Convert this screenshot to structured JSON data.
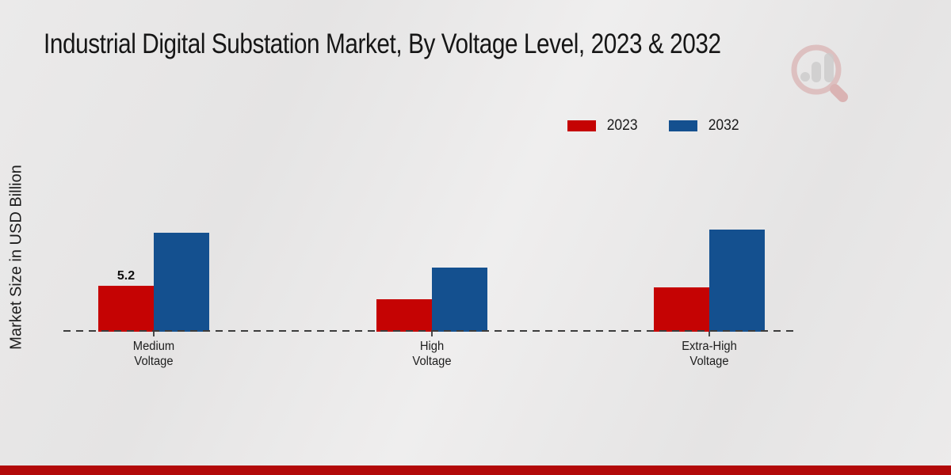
{
  "chart_data": {
    "type": "bar",
    "title": "Industrial Digital Substation Market, By Voltage Level, 2023 & 2032",
    "xlabel": "",
    "ylabel": "Market Size in USD Billion",
    "categories": [
      "Medium Voltage",
      "High Voltage",
      "Extra-High Voltage"
    ],
    "series": [
      {
        "name": "2023",
        "color": "#c50303",
        "values": [
          5.2,
          3.7,
          5.0
        ]
      },
      {
        "name": "2032",
        "color": "#14508f",
        "values": [
          11.2,
          7.2,
          11.5
        ]
      }
    ],
    "visible_value_labels": [
      {
        "series": "2023",
        "category_index": 0,
        "text": "5.2"
      }
    ],
    "ylim": [
      0,
      12
    ],
    "grid": false,
    "axis_ticks_visible": false,
    "legend_position": "top-right",
    "baseline_style": "dashed"
  },
  "watermark": {
    "name": "magnifier-bar-chart-logo"
  },
  "footer": {
    "bar_color": "#b20909"
  },
  "colors": {
    "background": "#e8e7e7",
    "title_text": "#161616",
    "axis_line": "#3c3c3c"
  }
}
